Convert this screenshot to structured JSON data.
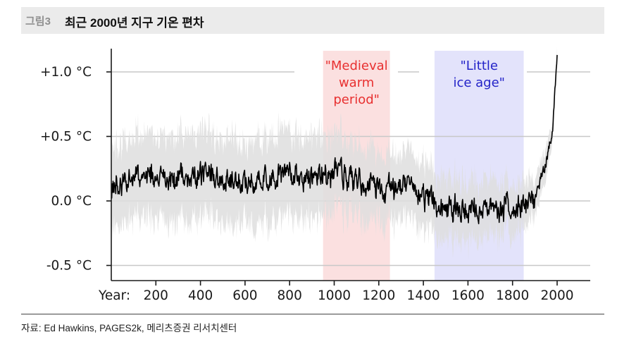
{
  "header": {
    "figure_label": "그림3",
    "title": "최근 2000년 지구 기온 편차"
  },
  "chart_data": {
    "type": "line",
    "x_label_prefix": "Year:",
    "x_ticks": [
      200,
      400,
      600,
      800,
      1000,
      1200,
      1400,
      1600,
      1800,
      2000
    ],
    "xlim": [
      0,
      2020
    ],
    "y_ticks": [
      {
        "value": 1.0,
        "label": "+1.0 °C"
      },
      {
        "value": 0.5,
        "label": "+0.5 °C"
      },
      {
        "value": 0.0,
        "label": "0.0 °C"
      },
      {
        "value": -0.5,
        "label": "-0.5 °C"
      }
    ],
    "ylim": [
      -0.55,
      1.18
    ],
    "grid": true,
    "periods": [
      {
        "name": "\"Medieval warm period\"",
        "lines": [
          "\"Medieval",
          "warm",
          "period\""
        ],
        "x_start": 950,
        "x_end": 1250,
        "fill": "#fbe0e0",
        "text_color": "#e83030"
      },
      {
        "name": "\"Little ice age\"",
        "lines": [
          "\"Little",
          "ice age\""
        ],
        "x_start": 1450,
        "x_end": 1850,
        "fill": "#e3e3fb",
        "text_color": "#2323c8"
      }
    ],
    "series": [
      {
        "x": [
          0,
          100,
          200,
          300,
          400,
          500,
          600,
          700,
          800,
          900,
          1000,
          1100,
          1200,
          1300,
          1400,
          1450,
          1500,
          1600,
          1700,
          1800,
          1850,
          1900,
          1950,
          1980,
          2000
        ],
        "y": [
          0.1,
          0.2,
          0.16,
          0.18,
          0.2,
          0.18,
          0.17,
          0.19,
          0.21,
          0.18,
          0.21,
          0.16,
          0.1,
          0.12,
          0.03,
          -0.02,
          -0.03,
          -0.08,
          -0.05,
          -0.06,
          -0.03,
          0.0,
          0.3,
          0.55,
          1.15
        ],
        "uncertainty": [
          0.32,
          0.32,
          0.33,
          0.33,
          0.33,
          0.33,
          0.33,
          0.33,
          0.32,
          0.31,
          0.3,
          0.28,
          0.27,
          0.26,
          0.25,
          0.25,
          0.24,
          0.23,
          0.22,
          0.2,
          0.18,
          0.14,
          0.12,
          0.08,
          0.05
        ],
        "line_color": "#000000",
        "band_color": "#dedede"
      }
    ]
  },
  "source": {
    "text": "자료: Ed Hawkins, PAGES2k, 메리츠증권 리서치센터"
  }
}
